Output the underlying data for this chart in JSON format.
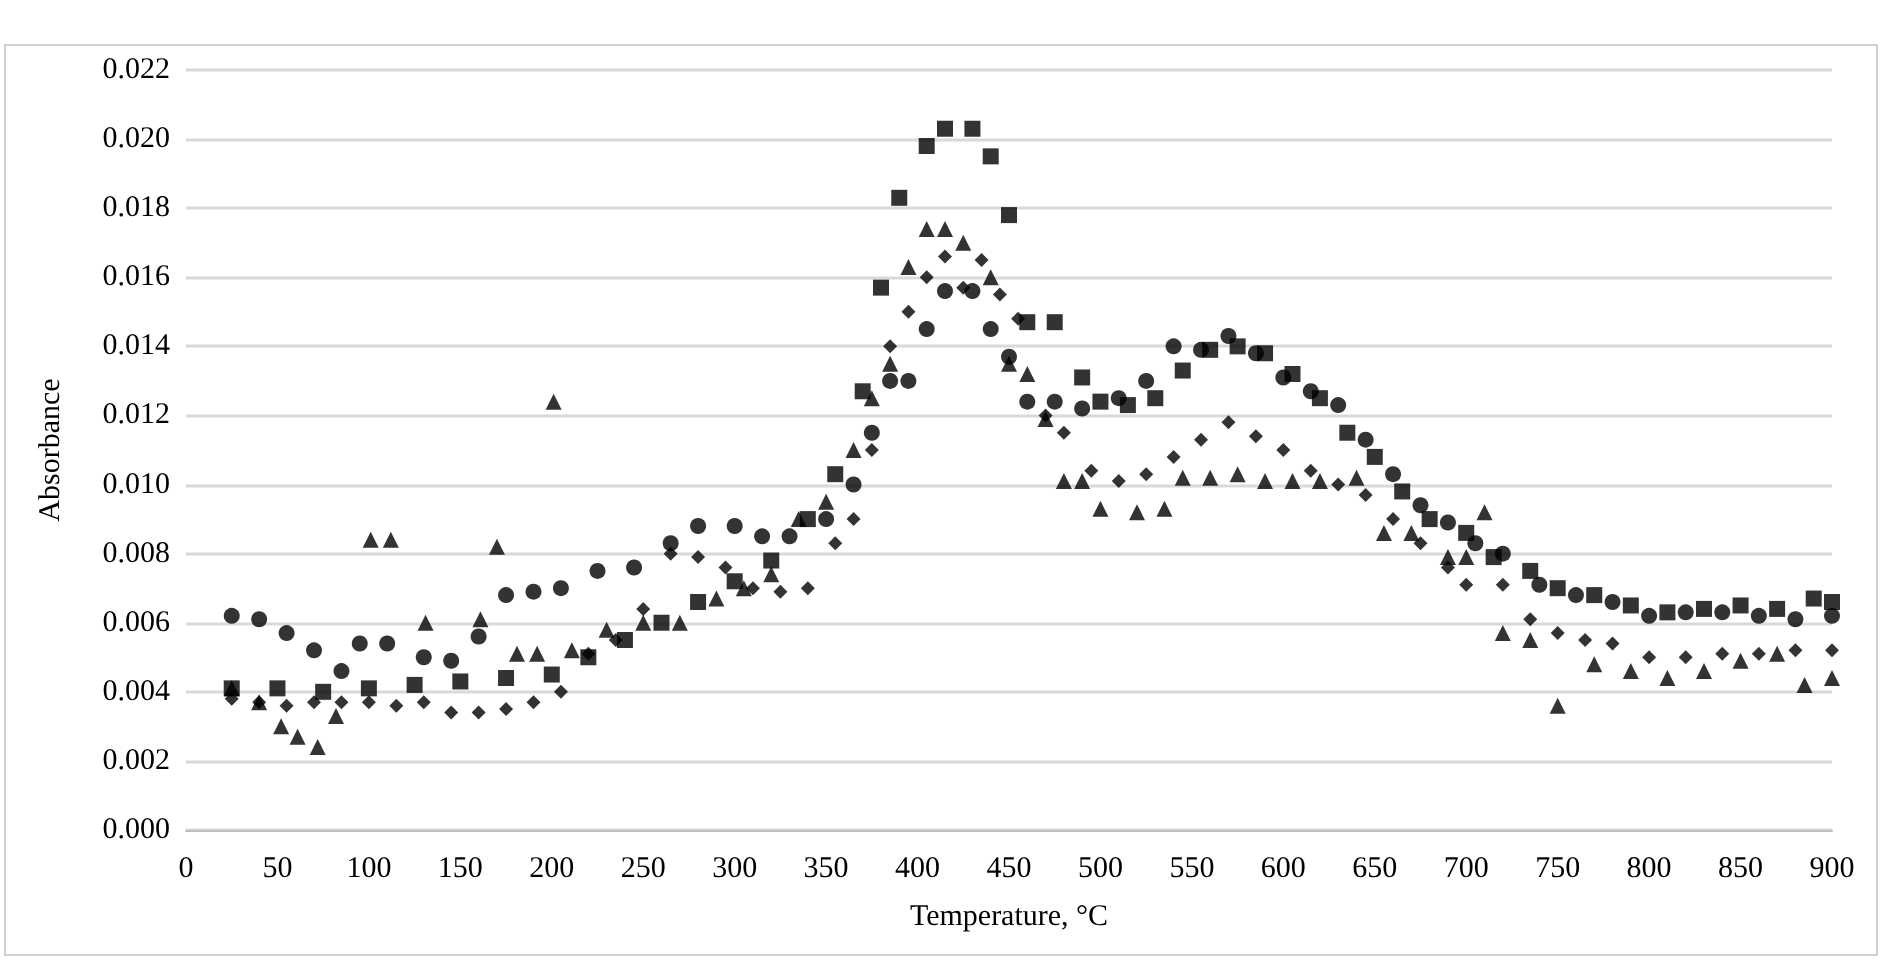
{
  "chart_data": {
    "type": "scatter",
    "xlabel": "Temperature, °C",
    "ylabel": "Absorbance",
    "grid": "y",
    "xlim": [
      0,
      900
    ],
    "xticks": [
      0,
      50,
      100,
      150,
      200,
      250,
      300,
      350,
      400,
      450,
      500,
      550,
      600,
      650,
      700,
      750,
      800,
      850,
      900
    ],
    "ylim": [
      0,
      0.022
    ],
    "yticks": [
      {
        "value": 0,
        "label": "0.000"
      },
      {
        "value": 0.002,
        "label": "0.002"
      },
      {
        "value": 0.004,
        "label": "0.004"
      },
      {
        "value": 0.006,
        "label": "0.006"
      },
      {
        "value": 0.008,
        "label": "0.008"
      },
      {
        "value": 0.01,
        "label": "0.010"
      },
      {
        "value": 0.012,
        "label": "0.012"
      },
      {
        "value": 0.014,
        "label": "0.014"
      },
      {
        "value": 0.016,
        "label": "0.016"
      },
      {
        "value": 0.018,
        "label": "0.018"
      },
      {
        "value": 0.02,
        "label": "0.020"
      },
      {
        "value": 0.022,
        "label": "0.022"
      }
    ],
    "series": [
      {
        "marker": "square",
        "color": "#000000",
        "x": [
          25,
          50,
          75,
          100,
          125,
          150,
          175,
          200,
          220,
          240,
          260,
          280,
          300,
          320,
          340,
          355,
          370,
          380,
          390,
          405,
          415,
          430,
          440,
          450,
          460,
          475,
          490,
          500,
          515,
          530,
          545,
          560,
          575,
          590,
          605,
          620,
          635,
          650,
          665,
          680,
          700,
          715,
          735,
          750,
          770,
          790,
          810,
          830,
          850,
          870,
          890,
          900
        ],
        "values": [
          0.0041,
          0.0041,
          0.004,
          0.0041,
          0.0042,
          0.0043,
          0.0044,
          0.0045,
          0.005,
          0.0055,
          0.006,
          0.0066,
          0.0072,
          0.0078,
          0.009,
          0.0103,
          0.0127,
          0.0157,
          0.0183,
          0.0198,
          0.0203,
          0.0203,
          0.0195,
          0.0178,
          0.0147,
          0.0147,
          0.0131,
          0.0124,
          0.0123,
          0.0125,
          0.0133,
          0.0139,
          0.014,
          0.0138,
          0.0132,
          0.0125,
          0.0115,
          0.0108,
          0.0098,
          0.009,
          0.0086,
          0.0079,
          0.0075,
          0.007,
          0.0068,
          0.0065,
          0.0063,
          0.0064,
          0.0065,
          0.0064,
          0.0067,
          0.0066
        ]
      },
      {
        "marker": "circle",
        "color": "#000000",
        "x": [
          25,
          40,
          55,
          70,
          85,
          95,
          110,
          130,
          145,
          160,
          175,
          190,
          205,
          225,
          245,
          265,
          280,
          300,
          315,
          330,
          350,
          365,
          375,
          385,
          395,
          405,
          415,
          430,
          440,
          450,
          460,
          475,
          490,
          510,
          525,
          540,
          555,
          570,
          585,
          600,
          615,
          630,
          645,
          660,
          675,
          690,
          705,
          720,
          740,
          760,
          780,
          800,
          820,
          840,
          860,
          880,
          900
        ],
        "values": [
          0.0062,
          0.0061,
          0.0057,
          0.0052,
          0.0046,
          0.0054,
          0.0054,
          0.005,
          0.0049,
          0.0056,
          0.0068,
          0.0069,
          0.007,
          0.0075,
          0.0076,
          0.0083,
          0.0088,
          0.0088,
          0.0085,
          0.0085,
          0.009,
          0.01,
          0.0115,
          0.013,
          0.013,
          0.0145,
          0.0156,
          0.0156,
          0.0145,
          0.0137,
          0.0124,
          0.0124,
          0.0122,
          0.0125,
          0.013,
          0.014,
          0.0139,
          0.0143,
          0.0138,
          0.0131,
          0.0127,
          0.0123,
          0.0113,
          0.0103,
          0.0094,
          0.0089,
          0.0083,
          0.008,
          0.0071,
          0.0068,
          0.0066,
          0.0062,
          0.0063,
          0.0063,
          0.0062,
          0.0061,
          0.0062
        ]
      },
      {
        "marker": "triangle",
        "color": "#000000",
        "x": [
          25,
          40,
          52,
          61,
          72,
          82,
          101,
          112,
          131,
          161,
          170,
          181,
          192,
          201,
          211,
          230,
          250,
          270,
          290,
          305,
          320,
          335,
          350,
          365,
          375,
          385,
          395,
          405,
          415,
          425,
          440,
          450,
          460,
          470,
          480,
          490,
          500,
          520,
          535,
          545,
          560,
          575,
          590,
          605,
          620,
          640,
          655,
          670,
          690,
          700,
          710,
          720,
          735,
          750,
          770,
          790,
          810,
          830,
          850,
          870,
          885,
          900
        ],
        "values": [
          0.0041,
          0.0037,
          0.003,
          0.0027,
          0.0024,
          0.0033,
          0.0084,
          0.0084,
          0.006,
          0.0061,
          0.0082,
          0.0051,
          0.0051,
          0.0124,
          0.0052,
          0.0058,
          0.006,
          0.006,
          0.0067,
          0.007,
          0.0074,
          0.009,
          0.0095,
          0.011,
          0.0125,
          0.0135,
          0.0163,
          0.0174,
          0.0174,
          0.017,
          0.016,
          0.0135,
          0.0132,
          0.0119,
          0.0101,
          0.0101,
          0.0093,
          0.0092,
          0.0093,
          0.0102,
          0.0102,
          0.0103,
          0.0101,
          0.0101,
          0.0101,
          0.0102,
          0.0086,
          0.0086,
          0.0079,
          0.0079,
          0.0092,
          0.0057,
          0.0055,
          0.0036,
          0.0048,
          0.0046,
          0.0044,
          0.0046,
          0.0049,
          0.0051,
          0.0042,
          0.0044
        ]
      },
      {
        "marker": "diamond",
        "color": "#000000",
        "x": [
          25,
          40,
          55,
          70,
          85,
          100,
          115,
          130,
          145,
          160,
          175,
          190,
          205,
          220,
          235,
          250,
          265,
          280,
          295,
          310,
          325,
          340,
          355,
          365,
          375,
          385,
          395,
          405,
          415,
          425,
          435,
          445,
          455,
          470,
          480,
          495,
          510,
          525,
          540,
          555,
          570,
          585,
          600,
          615,
          630,
          645,
          660,
          675,
          690,
          700,
          720,
          735,
          750,
          765,
          780,
          800,
          820,
          840,
          860,
          880,
          900
        ],
        "values": [
          0.0038,
          0.0037,
          0.0036,
          0.0037,
          0.0037,
          0.0037,
          0.0036,
          0.0037,
          0.0034,
          0.0034,
          0.0035,
          0.0037,
          0.004,
          0.0051,
          0.0055,
          0.0064,
          0.008,
          0.0079,
          0.0076,
          0.007,
          0.0069,
          0.007,
          0.0083,
          0.009,
          0.011,
          0.014,
          0.015,
          0.016,
          0.0166,
          0.0157,
          0.0165,
          0.0155,
          0.0148,
          0.012,
          0.0115,
          0.0104,
          0.0101,
          0.0103,
          0.0108,
          0.0113,
          0.0118,
          0.0114,
          0.011,
          0.0104,
          0.01,
          0.0097,
          0.009,
          0.0083,
          0.0076,
          0.0071,
          0.0071,
          0.0061,
          0.0057,
          0.0055,
          0.0054,
          0.005,
          0.005,
          0.0051,
          0.0051,
          0.0052,
          0.0052
        ]
      }
    ]
  }
}
